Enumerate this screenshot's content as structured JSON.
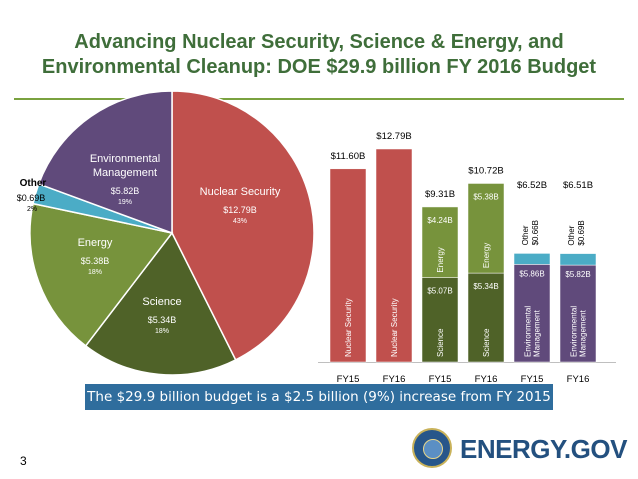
{
  "title_line1": "Advancing Nuclear Security, Science & Energy, and",
  "title_line2": "Environmental Cleanup: DOE $29.9 billion FY 2016 Budget",
  "banner": "The $29.9 billion budget is a $2.5 billion (9%) increase from FY 2015",
  "page_number": "3",
  "logo_text": "ENERGY.GOV",
  "chart_data": [
    {
      "type": "pie",
      "slices": [
        {
          "name": "Nuclear Security",
          "value": 12.79,
          "value_label": "$12.79B",
          "pct_label": "43%",
          "color": "#c0504d"
        },
        {
          "name": "Science",
          "value": 5.34,
          "value_label": "$5.34B",
          "pct_label": "18%",
          "color": "#4f6228"
        },
        {
          "name": "Energy",
          "value": 5.38,
          "value_label": "$5.38B",
          "pct_label": "18%",
          "color": "#77933c"
        },
        {
          "name": "Other",
          "value": 0.69,
          "value_label": "$0.69B",
          "pct_label": "2%",
          "color": "#4bacc6"
        },
        {
          "name": "Environmental Management",
          "value": 5.82,
          "value_label": "$5.82B",
          "pct_label": "19%",
          "color": "#604a7b"
        }
      ]
    },
    {
      "type": "bar",
      "stacked": true,
      "categories": [
        "FY15",
        "FY16",
        "FY15",
        "FY16",
        "FY15",
        "FY16"
      ],
      "totals": [
        "$11.60B",
        "$12.79B",
        "$9.31B",
        "$10.72B",
        "$6.52B",
        "$6.51B"
      ],
      "bars": [
        {
          "segments": [
            {
              "name": "Nuclear Security",
              "value": 11.6,
              "label": "",
              "color": "#c0504d"
            }
          ]
        },
        {
          "segments": [
            {
              "name": "Nuclear Security",
              "value": 12.79,
              "label": "",
              "color": "#c0504d"
            }
          ]
        },
        {
          "segments": [
            {
              "name": "Science",
              "value": 5.07,
              "label": "$5.07B",
              "color": "#4f6228"
            },
            {
              "name": "Energy",
              "value": 4.24,
              "label": "$4.24B",
              "color": "#77933c"
            }
          ]
        },
        {
          "segments": [
            {
              "name": "Science",
              "value": 5.34,
              "label": "$5.34B",
              "color": "#4f6228"
            },
            {
              "name": "Energy",
              "value": 5.38,
              "label": "$5.38B",
              "color": "#77933c"
            }
          ]
        },
        {
          "segments": [
            {
              "name": "Environmental Management",
              "value": 5.86,
              "label": "$5.86B",
              "color": "#604a7b"
            },
            {
              "name": "Other",
              "value": 0.66,
              "label": "$0.66B",
              "color": "#4bacc6"
            }
          ]
        },
        {
          "segments": [
            {
              "name": "Environmental Management",
              "value": 5.82,
              "label": "$5.82B",
              "color": "#604a7b"
            },
            {
              "name": "Other",
              "value": 0.69,
              "label": "$0.69B",
              "color": "#4bacc6"
            }
          ]
        }
      ]
    }
  ]
}
